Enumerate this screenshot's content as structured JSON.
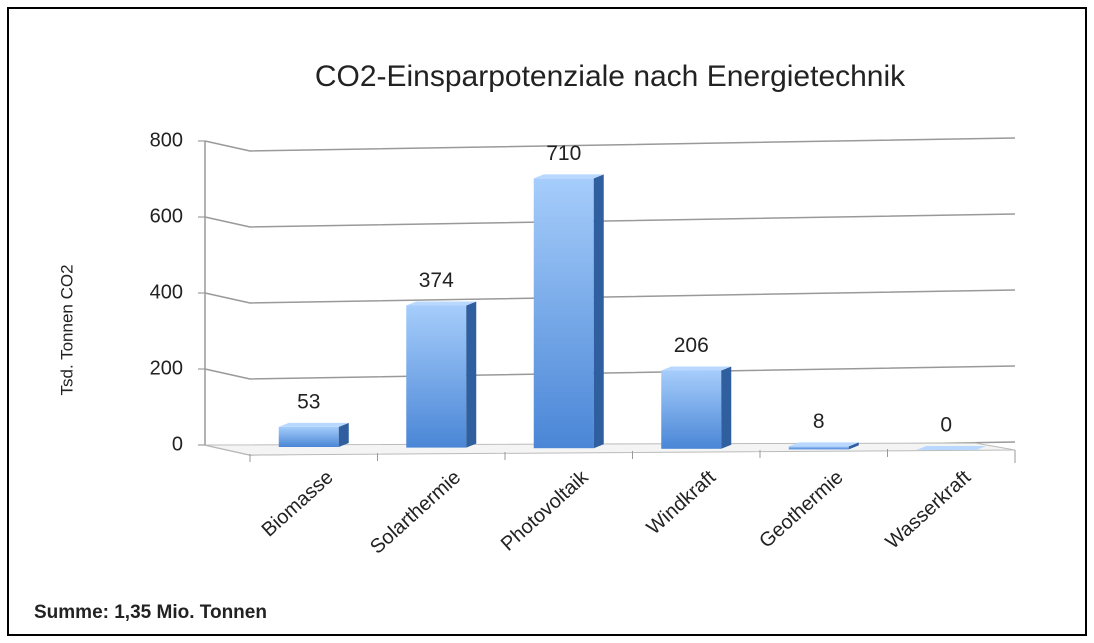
{
  "chart_data": {
    "type": "bar3d",
    "title": "CO2-Einsparpotenziale nach Energietechnik",
    "y_label": "Tsd. Tonnen CO2",
    "footnote": "Summe: 1,35 Mio. Tonnen",
    "categories": [
      "Biomasse",
      "Solarthermie",
      "Photovoltaik",
      "Windkraft",
      "Geothermie",
      "Wasserkraft"
    ],
    "values": [
      53,
      374,
      710,
      206,
      8,
      0
    ],
    "color": "#4f8ee0",
    "ylim": [
      0,
      800
    ],
    "yticks": [
      0,
      200,
      400,
      600,
      800
    ],
    "grid": true
  }
}
